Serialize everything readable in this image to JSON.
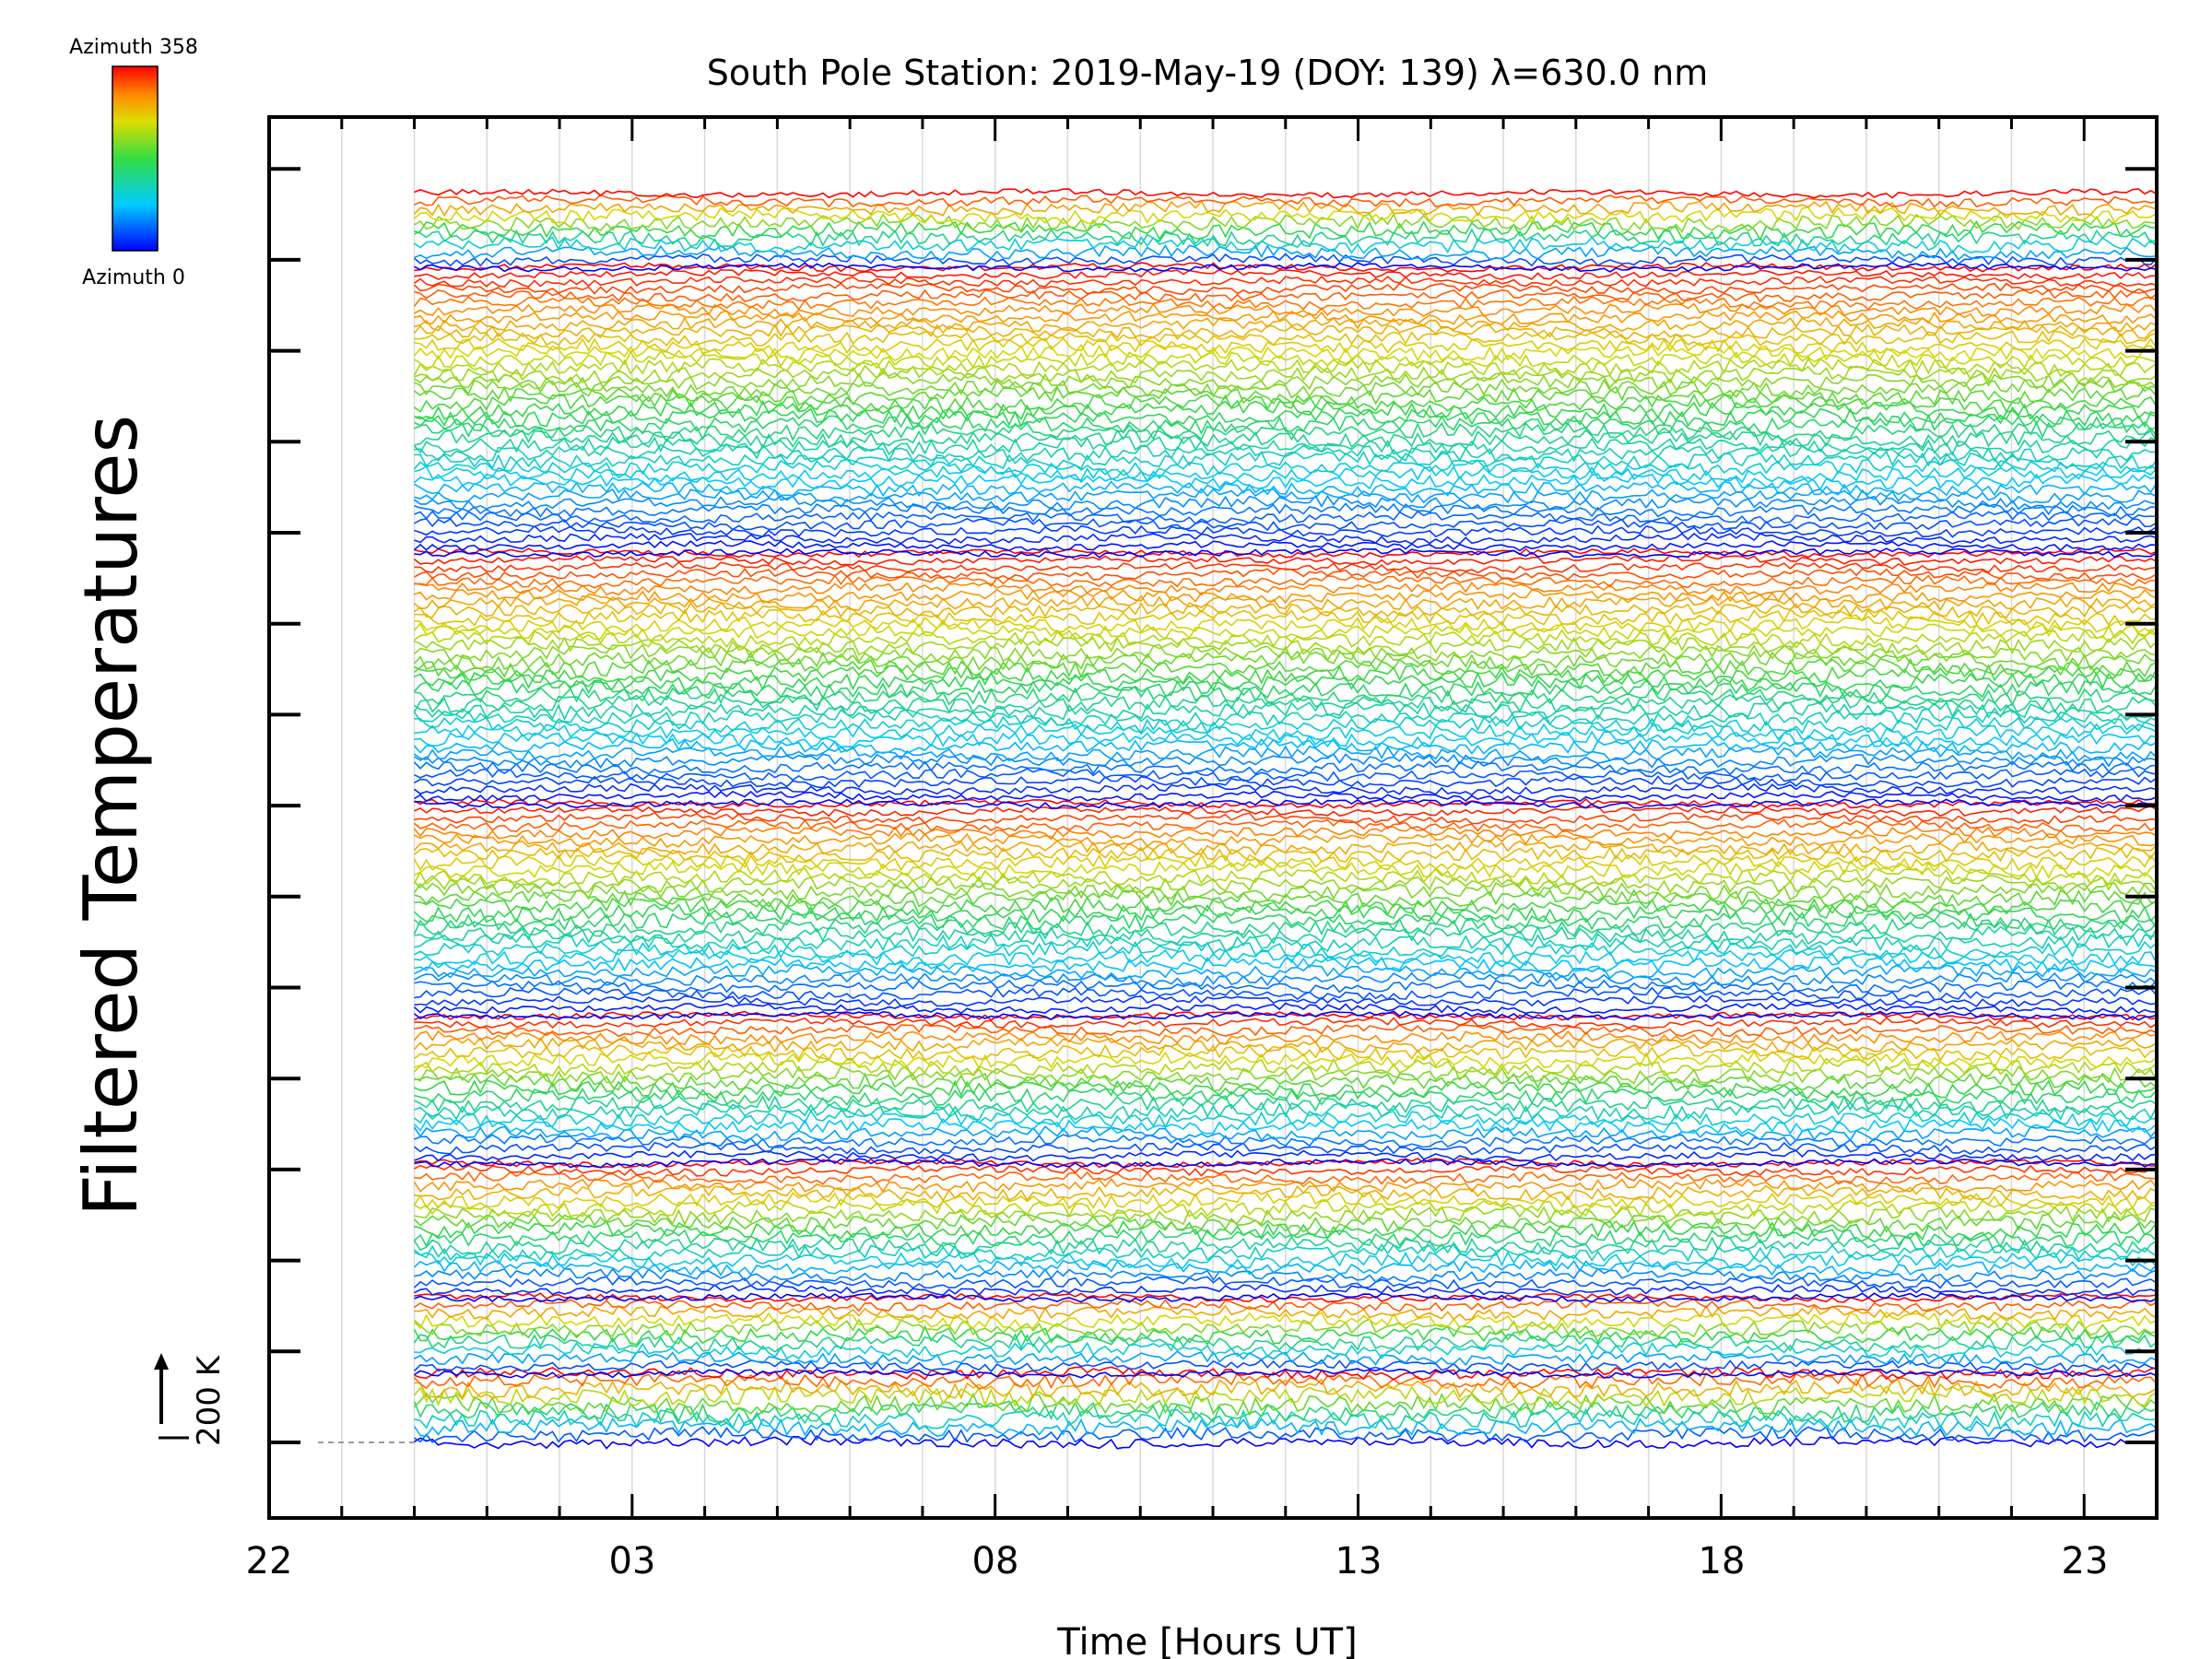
{
  "chart_data": {
    "type": "line",
    "title": "South Pole Station: 2019-May-19 (DOY: 139) λ=630.0 nm",
    "xlabel": "Time [Hours UT]",
    "ylabel": "Filtered Temperatures",
    "x_tick_labels": [
      "22",
      "03",
      "08",
      "13",
      "18",
      "23"
    ],
    "x_range_hours": [
      22,
      48
    ],
    "data_start_hour": 24,
    "grid": "vertical lines every hour",
    "scale_bar": {
      "label": "200 K",
      "value_k": 200
    },
    "legend": {
      "placement": "top-left",
      "top_label": "Azimuth 358",
      "bottom_label": "Azimuth 0",
      "colormap": "rainbow (blue at azimuth 0 to red at azimuth 358)"
    },
    "series_description": "Stacked, vertically offset filtered temperature traces, one per azimuth, colour-coded by azimuth; stack cycles through the azimuth colour scale repeatedly from bottom to top",
    "colors": {
      "axes": "#000000",
      "grid": "#d9d9d9",
      "low_azimuth": "#0000ff",
      "high_azimuth": "#ff0000"
    }
  }
}
